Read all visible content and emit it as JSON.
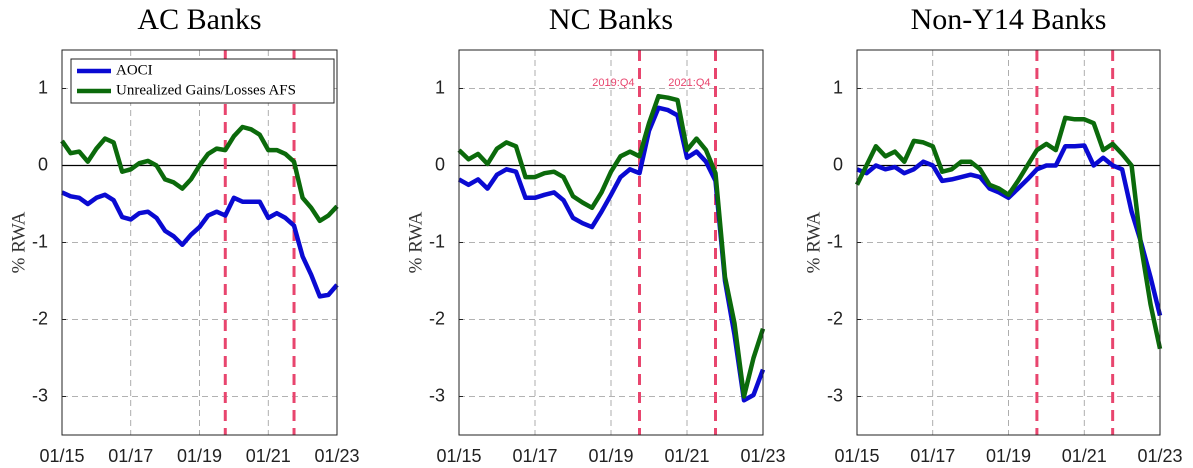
{
  "chart_data": [
    {
      "type": "line",
      "title": "AC Banks",
      "ylabel": "% RWA",
      "x": [
        "01/15",
        "04/15",
        "07/15",
        "10/15",
        "01/16",
        "04/16",
        "07/16",
        "10/16",
        "01/17",
        "04/17",
        "07/17",
        "10/17",
        "01/18",
        "04/18",
        "07/18",
        "10/18",
        "01/19",
        "04/19",
        "07/19",
        "10/19",
        "01/20",
        "04/20",
        "07/20",
        "10/20",
        "01/21",
        "04/21",
        "07/21",
        "10/21",
        "01/22",
        "04/22",
        "07/22",
        "10/22",
        "01/23"
      ],
      "xticks": [
        "01/15",
        "01/17",
        "01/19",
        "01/21",
        "01/23"
      ],
      "ylim": [
        -3.5,
        1.5
      ],
      "yticks": [
        -3,
        -2,
        -1,
        0,
        1
      ],
      "grid": true,
      "hline": 0,
      "vlines": [
        {
          "x": "10/19",
          "color": "#e8456e"
        },
        {
          "x": "10/21",
          "color": "#e8456e"
        }
      ],
      "legend": "upper left",
      "series": [
        {
          "name": "AOCI",
          "color": "#0a0ad2",
          "values": [
            -0.35,
            -0.4,
            -0.42,
            -0.5,
            -0.42,
            -0.38,
            -0.45,
            -0.67,
            -0.7,
            -0.62,
            -0.6,
            -0.68,
            -0.85,
            -0.92,
            -1.03,
            -0.9,
            -0.8,
            -0.65,
            -0.6,
            -0.65,
            -0.42,
            -0.47,
            -0.47,
            -0.47,
            -0.68,
            -0.62,
            -0.68,
            -0.78,
            -1.18,
            -1.42,
            -1.7,
            -1.68,
            -1.55
          ]
        },
        {
          "name": "Unrealized Gains/Losses AFS",
          "color": "#0b6a0b",
          "values": [
            0.32,
            0.16,
            0.18,
            0.05,
            0.22,
            0.35,
            0.3,
            -0.08,
            -0.05,
            0.03,
            0.06,
            0.0,
            -0.18,
            -0.22,
            -0.3,
            -0.18,
            0.0,
            0.15,
            0.22,
            0.2,
            0.38,
            0.5,
            0.47,
            0.4,
            0.2,
            0.2,
            0.15,
            0.05,
            -0.42,
            -0.55,
            -0.72,
            -0.65,
            -0.53
          ]
        }
      ]
    },
    {
      "type": "line",
      "title": "NC Banks",
      "ylabel": "% RWA",
      "x": [
        "01/15",
        "04/15",
        "07/15",
        "10/15",
        "01/16",
        "04/16",
        "07/16",
        "10/16",
        "01/17",
        "04/17",
        "07/17",
        "10/17",
        "01/18",
        "04/18",
        "07/18",
        "10/18",
        "01/19",
        "04/19",
        "07/19",
        "10/19",
        "01/20",
        "04/20",
        "07/20",
        "10/20",
        "01/21",
        "04/21",
        "07/21",
        "10/21",
        "01/22",
        "04/22",
        "07/22",
        "10/22",
        "01/23"
      ],
      "xticks": [
        "01/15",
        "01/17",
        "01/19",
        "01/21",
        "01/23"
      ],
      "ylim": [
        -3.5,
        1.5
      ],
      "yticks": [
        -3,
        -2,
        -1,
        0,
        1
      ],
      "grid": true,
      "hline": 0,
      "vlines": [
        {
          "x": "10/19",
          "label": "2019:Q4",
          "color": "#e8456e"
        },
        {
          "x": "10/21",
          "label": "2021:Q4",
          "color": "#e8456e"
        }
      ],
      "series": [
        {
          "color": "#0a0ad2",
          "values": [
            -0.18,
            -0.25,
            -0.18,
            -0.3,
            -0.12,
            -0.05,
            -0.08,
            -0.42,
            -0.42,
            -0.38,
            -0.35,
            -0.45,
            -0.68,
            -0.75,
            -0.8,
            -0.6,
            -0.38,
            -0.15,
            -0.05,
            -0.1,
            0.45,
            0.75,
            0.72,
            0.65,
            0.1,
            0.18,
            0.05,
            -0.2,
            -1.5,
            -2.2,
            -3.05,
            -2.98,
            -2.65
          ]
        },
        {
          "color": "#0b6a0b",
          "values": [
            0.2,
            0.08,
            0.15,
            0.02,
            0.22,
            0.3,
            0.25,
            -0.15,
            -0.15,
            -0.1,
            -0.08,
            -0.15,
            -0.4,
            -0.48,
            -0.55,
            -0.35,
            -0.08,
            0.12,
            0.18,
            0.12,
            0.55,
            0.9,
            0.88,
            0.85,
            0.2,
            0.35,
            0.2,
            -0.1,
            -1.45,
            -2.05,
            -3.0,
            -2.5,
            -2.12
          ]
        }
      ]
    },
    {
      "type": "line",
      "title": "Non-Y14 Banks",
      "ylabel": "% RWA",
      "x": [
        "01/15",
        "04/15",
        "07/15",
        "10/15",
        "01/16",
        "04/16",
        "07/16",
        "10/16",
        "01/17",
        "04/17",
        "07/17",
        "10/17",
        "01/18",
        "04/18",
        "07/18",
        "10/18",
        "01/19",
        "04/19",
        "07/19",
        "10/19",
        "01/20",
        "04/20",
        "07/20",
        "10/20",
        "01/21",
        "04/21",
        "07/21",
        "10/21",
        "01/22",
        "04/22",
        "07/22",
        "10/22",
        "01/23"
      ],
      "xticks": [
        "01/15",
        "01/17",
        "01/19",
        "01/21",
        "01/23"
      ],
      "ylim": [
        -3.5,
        1.5
      ],
      "yticks": [
        -3,
        -2,
        -1,
        0,
        1
      ],
      "grid": true,
      "hline": 0,
      "vlines": [
        {
          "x": "10/19",
          "color": "#e8456e"
        },
        {
          "x": "10/21",
          "color": "#e8456e"
        }
      ],
      "series": [
        {
          "color": "#0a0ad2",
          "values": [
            -0.05,
            -0.1,
            0.0,
            -0.05,
            -0.02,
            -0.1,
            -0.05,
            0.05,
            0.0,
            -0.2,
            -0.18,
            -0.15,
            -0.12,
            -0.15,
            -0.3,
            -0.35,
            -0.42,
            -0.3,
            -0.18,
            -0.05,
            0.0,
            0.0,
            0.25,
            0.25,
            0.26,
            0.0,
            0.1,
            0.0,
            -0.05,
            -0.6,
            -1.0,
            -1.45,
            -1.95
          ]
        },
        {
          "color": "#0b6a0b",
          "values": [
            -0.25,
            0.0,
            0.25,
            0.12,
            0.18,
            0.05,
            0.32,
            0.3,
            0.25,
            -0.08,
            -0.05,
            0.05,
            0.05,
            -0.05,
            -0.25,
            -0.3,
            -0.38,
            -0.2,
            0.0,
            0.2,
            0.28,
            0.2,
            0.62,
            0.6,
            0.6,
            0.55,
            0.2,
            0.28,
            0.15,
            0.0,
            -1.05,
            -1.8,
            -2.38
          ]
        }
      ]
    }
  ]
}
